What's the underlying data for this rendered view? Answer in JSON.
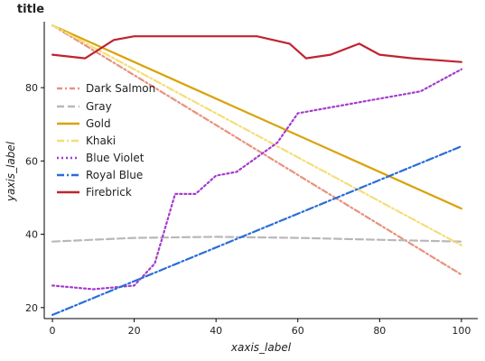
{
  "chart_data": {
    "type": "line",
    "title": "title",
    "xlabel": "xaxis_label",
    "ylabel": "yaxis_label",
    "xlim": [
      -2,
      104
    ],
    "ylim": [
      17,
      98
    ],
    "xticks": [
      0,
      20,
      40,
      60,
      80,
      100
    ],
    "yticks": [
      20,
      40,
      60,
      80
    ],
    "grid": false,
    "legend_position": "left",
    "series": [
      {
        "name": "Dark Salmon",
        "color": "#E8927C",
        "dash": "6,3,2,3",
        "x": [
          0,
          100
        ],
        "y": [
          97,
          29
        ]
      },
      {
        "name": "Gray",
        "color": "#B8B8B8",
        "dash": "8,4",
        "x": [
          0,
          20,
          40,
          60,
          80,
          100
        ],
        "y": [
          38,
          39,
          39.3,
          39,
          38.5,
          38
        ]
      },
      {
        "name": "Gold",
        "color": "#D9A30A",
        "dash": "",
        "x": [
          0,
          100
        ],
        "y": [
          97,
          47
        ]
      },
      {
        "name": "Khaki",
        "color": "#F5DD7A",
        "dash": "8,3,2,3",
        "x": [
          0,
          100
        ],
        "y": [
          97,
          37
        ]
      },
      {
        "name": "Blue Violet",
        "color": "#A53ACD",
        "dash": "2,3",
        "x": [
          0,
          10,
          20,
          25,
          30,
          35,
          40,
          45,
          50,
          55,
          60,
          70,
          80,
          90,
          100
        ],
        "y": [
          26,
          25,
          26,
          32,
          51,
          51,
          56,
          57,
          61,
          65,
          73,
          75,
          77,
          79,
          85
        ]
      },
      {
        "name": "Royal Blue",
        "color": "#2A6DD8",
        "dash": "8,3,2,3",
        "x": [
          0,
          100
        ],
        "y": [
          18,
          64
        ]
      },
      {
        "name": "Firebrick",
        "color": "#BF2430",
        "dash": "",
        "x": [
          0,
          8,
          15,
          20,
          30,
          40,
          50,
          58,
          62,
          68,
          75,
          80,
          88,
          100
        ],
        "y": [
          89,
          88,
          93,
          94,
          94,
          94,
          94,
          92,
          88,
          89,
          92,
          89,
          88,
          87
        ]
      }
    ]
  }
}
